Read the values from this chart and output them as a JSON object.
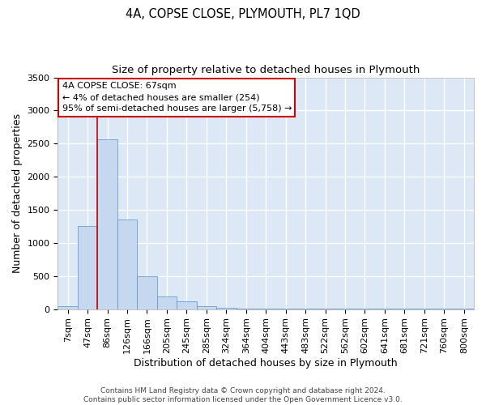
{
  "title": "4A, COPSE CLOSE, PLYMOUTH, PL7 1QD",
  "subtitle": "Size of property relative to detached houses in Plymouth",
  "xlabel": "Distribution of detached houses by size in Plymouth",
  "ylabel": "Number of detached properties",
  "categories": [
    "7sqm",
    "47sqm",
    "86sqm",
    "126sqm",
    "166sqm",
    "205sqm",
    "245sqm",
    "285sqm",
    "324sqm",
    "364sqm",
    "404sqm",
    "443sqm",
    "483sqm",
    "522sqm",
    "562sqm",
    "602sqm",
    "641sqm",
    "681sqm",
    "721sqm",
    "760sqm",
    "800sqm"
  ],
  "values": [
    50,
    1255,
    2570,
    1350,
    500,
    195,
    115,
    50,
    20,
    10,
    10,
    10,
    5,
    5,
    5,
    5,
    5,
    5,
    5,
    5,
    5
  ],
  "bar_color": "#c5d8f0",
  "bar_edge_color": "#5a90c8",
  "background_color": "#dce8f5",
  "grid_color": "#ffffff",
  "property_line_x": 1.5,
  "annotation_text_line1": "4A COPSE CLOSE: 67sqm",
  "annotation_text_line2": "← 4% of detached houses are smaller (254)",
  "annotation_text_line3": "95% of semi-detached houses are larger (5,758) →",
  "annotation_box_color": "#ffffff",
  "annotation_border_color": "#cc0000",
  "red_line_color": "#cc0000",
  "ylim": [
    0,
    3500
  ],
  "yticks": [
    0,
    500,
    1000,
    1500,
    2000,
    2500,
    3000,
    3500
  ],
  "footer_line1": "Contains HM Land Registry data © Crown copyright and database right 2024.",
  "footer_line2": "Contains public sector information licensed under the Open Government Licence v3.0.",
  "title_fontsize": 10.5,
  "subtitle_fontsize": 9.5,
  "axis_label_fontsize": 9,
  "tick_fontsize": 8,
  "annotation_fontsize": 8,
  "footer_fontsize": 6.5
}
